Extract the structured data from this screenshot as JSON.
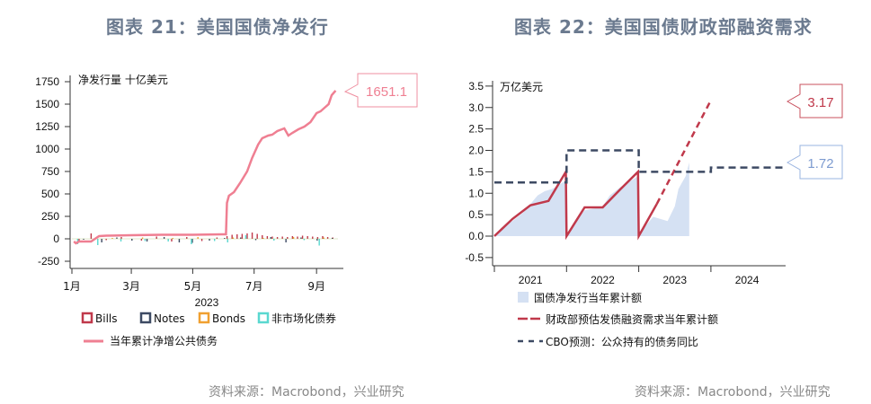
{
  "left": {
    "title": "图表 21：美国国债净发行",
    "source": "资料来源：Macrobond，兴业研究"
  },
  "right": {
    "title": "图表 22：美国国债财政部融资需求",
    "source": "资料来源：Macrobond，兴业研究"
  },
  "chart_data": [
    {
      "type": "bar",
      "title": "图表 21：美国国债净发行",
      "unit_label": "净发行量 十亿美元",
      "xlabel": "2023",
      "ylim": [
        -250,
        1750
      ],
      "yticks": [
        -250,
        0,
        250,
        500,
        750,
        1000,
        1250,
        1500,
        1750
      ],
      "xticks": [
        {
          "label": "1月",
          "day": 1
        },
        {
          "label": "3月",
          "day": 60
        },
        {
          "label": "5月",
          "day": 121
        },
        {
          "label": "7月",
          "day": 182
        },
        {
          "label": "9月",
          "day": 244
        }
      ],
      "legend": [
        "Bills",
        "Notes",
        "Bonds",
        "非市场化债券",
        "当年累计净增公共债务"
      ],
      "colors": {
        "Bills": "#c0394b",
        "Notes": "#3d4a63",
        "Bonds": "#f0a030",
        "nonmarket": "#5ad8d0",
        "cumulative": "#ef7f92"
      },
      "callout": "1651.1",
      "cumulative": {
        "day": [
          3,
          5,
          8,
          12,
          20,
          28,
          35,
          60,
          90,
          121,
          150,
          154,
          155,
          157,
          162,
          168,
          175,
          180,
          186,
          190,
          196,
          200,
          205,
          212,
          216,
          220,
          226,
          232,
          238,
          244,
          248,
          252,
          256,
          259,
          263
        ],
        "value": [
          -30,
          -50,
          -30,
          -30,
          -30,
          30,
          35,
          40,
          45,
          45,
          50,
          50,
          400,
          480,
          520,
          620,
          750,
          900,
          1050,
          1120,
          1150,
          1160,
          1200,
          1230,
          1150,
          1180,
          1220,
          1250,
          1300,
          1400,
          1420,
          1460,
          1500,
          1600,
          1651
        ]
      },
      "series": [
        {
          "name": "Bills",
          "day": [
            8,
            20,
            35,
            50,
            70,
            85,
            100,
            115,
            130,
            145,
            155,
            160,
            165,
            170,
            175,
            180,
            185,
            190,
            195,
            200,
            205,
            210,
            215,
            220,
            225,
            230,
            235,
            240,
            245,
            250,
            255,
            260
          ],
          "values": [
            -20,
            60,
            -15,
            20,
            -20,
            25,
            -30,
            20,
            -25,
            15,
            30,
            45,
            50,
            55,
            60,
            70,
            55,
            40,
            30,
            25,
            20,
            25,
            20,
            30,
            25,
            35,
            30,
            25,
            20,
            30,
            20,
            15
          ]
        },
        {
          "name": "Notes",
          "day": [
            12,
            30,
            45,
            60,
            75,
            92,
            107,
            120,
            137,
            152,
            168,
            183,
            198,
            213,
            228,
            244,
            259
          ],
          "values": [
            -10,
            -40,
            15,
            -20,
            -30,
            20,
            -40,
            -45,
            -20,
            10,
            15,
            -15,
            20,
            -40,
            15,
            -20,
            10
          ]
        },
        {
          "name": "Bonds",
          "day": [
            40,
            70,
            100,
            125,
            160,
            190,
            220,
            250
          ],
          "values": [
            10,
            15,
            10,
            20,
            15,
            10,
            20,
            15
          ]
        },
        {
          "name": "非市场化债券",
          "day": [
            5,
            25,
            48,
            72,
            95,
            118,
            141,
            154,
            172,
            200,
            230,
            245
          ],
          "values": [
            -60,
            -70,
            -30,
            -25,
            -30,
            -60,
            -25,
            -40,
            40,
            -20,
            -15,
            -75
          ]
        }
      ]
    },
    {
      "type": "line",
      "title": "图表 22：美国国债财政部融资需求",
      "unit_label": "万亿美元",
      "ylim": [
        -0.5,
        3.5
      ],
      "yticks": [
        -0.5,
        0.0,
        0.5,
        1.0,
        1.5,
        2.0,
        2.5,
        3.0,
        3.5
      ],
      "xlim": [
        2021,
        2025
      ],
      "xticklabels": [
        "2021",
        "2022",
        "2023",
        "2024"
      ],
      "legend": [
        "国债净发行当年累计额",
        "财政部预估发债融资需求当年累计额",
        "CBO预测：公众持有的债务同比"
      ],
      "colors": {
        "area": "#d5e1f3",
        "treasury": "#c0394b",
        "cbo": "#3d4a63"
      },
      "callouts": {
        "treasury": "3.17",
        "cbo": "1.72"
      },
      "area": {
        "x": [
          2021,
          2021.1,
          2021.25,
          2021.4,
          2021.5,
          2021.6,
          2021.7,
          2021.8,
          2021.9,
          2021.99,
          2022,
          2022.1,
          2022.25,
          2022.4,
          2022.5,
          2022.6,
          2022.75,
          2022.9,
          2022.99,
          2023,
          2023.1,
          2023.2,
          2023.3,
          2023.4,
          2023.5,
          2023.55,
          2023.6,
          2023.65,
          2023.7
        ],
        "y": [
          0,
          0.2,
          0.35,
          0.55,
          0.75,
          0.95,
          1.05,
          1.1,
          1.2,
          1.3,
          0,
          0.3,
          0.6,
          0.65,
          0.7,
          0.95,
          1.15,
          1.3,
          1.4,
          0,
          0.25,
          0.45,
          0.4,
          0.35,
          0.7,
          1.1,
          1.25,
          1.4,
          1.72
        ]
      },
      "treasury_solid": {
        "x": [
          2021,
          2021.25,
          2021.5,
          2021.75,
          2021.99,
          2022,
          2022.25,
          2022.5,
          2022.75,
          2022.99,
          2023,
          2023.25
        ],
        "y": [
          0,
          0.4,
          0.72,
          0.82,
          1.5,
          0,
          0.67,
          0.67,
          1.1,
          1.5,
          0,
          0.75
        ]
      },
      "treasury_dashed": {
        "x": [
          2023.25,
          2024
        ],
        "y": [
          0.75,
          3.17
        ]
      },
      "cbo": {
        "x": [
          2021,
          2022,
          2022,
          2023,
          2023,
          2024,
          2024,
          2025.05
        ],
        "y": [
          1.25,
          1.25,
          2.0,
          2.0,
          1.5,
          1.5,
          1.6,
          1.6
        ]
      }
    }
  ]
}
